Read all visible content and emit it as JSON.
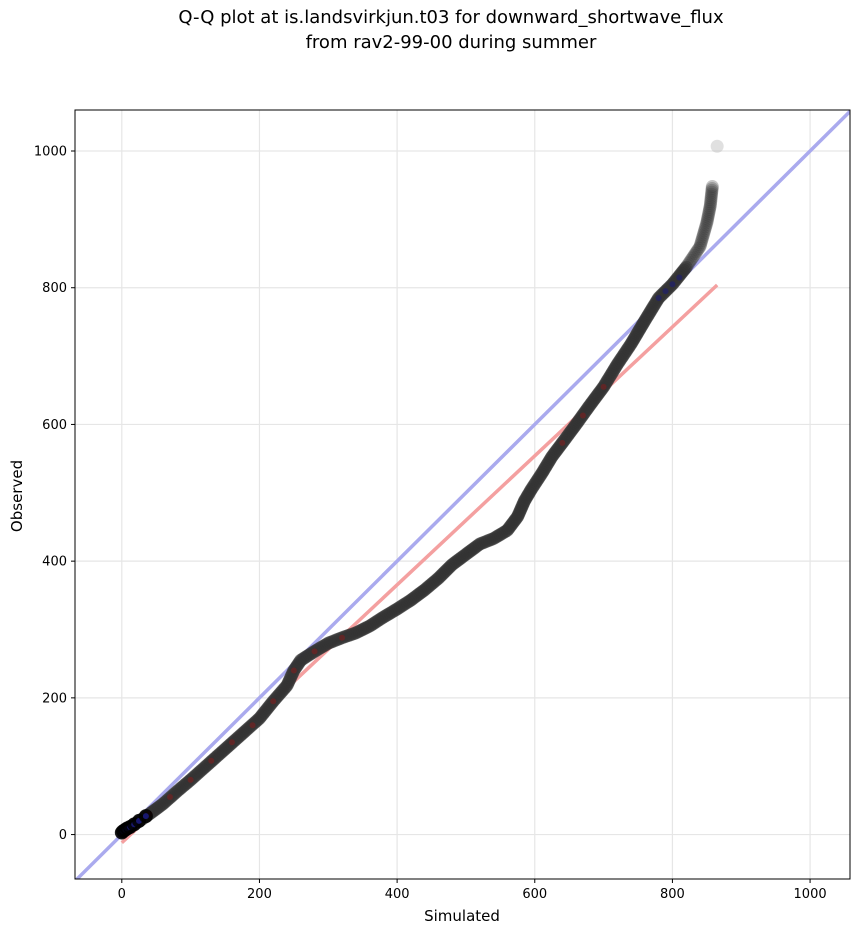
{
  "chart_data": {
    "type": "scatter",
    "title_lines": [
      "Q-Q plot at is.landsvirkjun.t03 for downward_shortwave_flux",
      "from rav2-99-00 during summer"
    ],
    "xlabel": "Simulated",
    "ylabel": "Observed",
    "xlim": [
      -68,
      1058
    ],
    "ylim": [
      -65,
      1060
    ],
    "x_ticks": [
      0,
      200,
      400,
      600,
      800,
      1000
    ],
    "y_ticks": [
      0,
      200,
      400,
      600,
      800,
      1000
    ],
    "grid": true,
    "quantile_curve": [
      [
        0,
        3
      ],
      [
        5,
        7
      ],
      [
        10,
        10
      ],
      [
        20,
        16
      ],
      [
        40,
        30
      ],
      [
        60,
        45
      ],
      [
        80,
        63
      ],
      [
        100,
        80
      ],
      [
        120,
        98
      ],
      [
        150,
        125
      ],
      [
        180,
        152
      ],
      [
        200,
        170
      ],
      [
        220,
        195
      ],
      [
        240,
        218
      ],
      [
        250,
        240
      ],
      [
        260,
        255
      ],
      [
        280,
        268
      ],
      [
        300,
        280
      ],
      [
        320,
        288
      ],
      [
        340,
        295
      ],
      [
        360,
        305
      ],
      [
        380,
        318
      ],
      [
        400,
        330
      ],
      [
        420,
        343
      ],
      [
        440,
        358
      ],
      [
        460,
        375
      ],
      [
        480,
        395
      ],
      [
        500,
        410
      ],
      [
        520,
        425
      ],
      [
        540,
        433
      ],
      [
        560,
        445
      ],
      [
        575,
        465
      ],
      [
        585,
        488
      ],
      [
        595,
        505
      ],
      [
        610,
        528
      ],
      [
        625,
        553
      ],
      [
        640,
        573
      ],
      [
        660,
        600
      ],
      [
        680,
        628
      ],
      [
        700,
        655
      ],
      [
        720,
        688
      ],
      [
        740,
        718
      ],
      [
        760,
        752
      ],
      [
        780,
        785
      ],
      [
        800,
        805
      ],
      [
        820,
        830
      ],
      [
        840,
        860
      ],
      [
        850,
        895
      ],
      [
        855,
        920
      ],
      [
        858,
        948
      ]
    ],
    "outlier_points": [
      [
        865,
        1007
      ]
    ],
    "identity_line": {
      "color": "#aaaaee",
      "from": -68,
      "to": 1058
    },
    "fit_line": {
      "color": "#f4a0a0",
      "x1": 0,
      "y1": -12,
      "x2": 865,
      "y2": 804
    },
    "low_blue_markers": [
      [
        0,
        3
      ],
      [
        2,
        5
      ],
      [
        5,
        7
      ],
      [
        8,
        9
      ],
      [
        12,
        11
      ],
      [
        18,
        15
      ],
      [
        25,
        20
      ],
      [
        35,
        27
      ]
    ],
    "low_fit_points": [
      [
        15,
        12
      ],
      [
        40,
        30
      ],
      [
        70,
        55
      ],
      [
        100,
        80
      ],
      [
        130,
        108
      ],
      [
        160,
        135
      ],
      [
        190,
        160
      ],
      [
        220,
        195
      ],
      [
        250,
        240
      ],
      [
        280,
        268
      ],
      [
        320,
        288
      ],
      [
        640,
        573
      ],
      [
        670,
        613
      ],
      [
        700,
        655
      ]
    ],
    "upper_blue_markers": [
      [
        780,
        785
      ],
      [
        790,
        795
      ],
      [
        800,
        805
      ],
      [
        810,
        815
      ]
    ],
    "point_color": "#333333",
    "blue_marker_color": "#1a1a7a",
    "red_marker_color": "#8b1a1a"
  }
}
